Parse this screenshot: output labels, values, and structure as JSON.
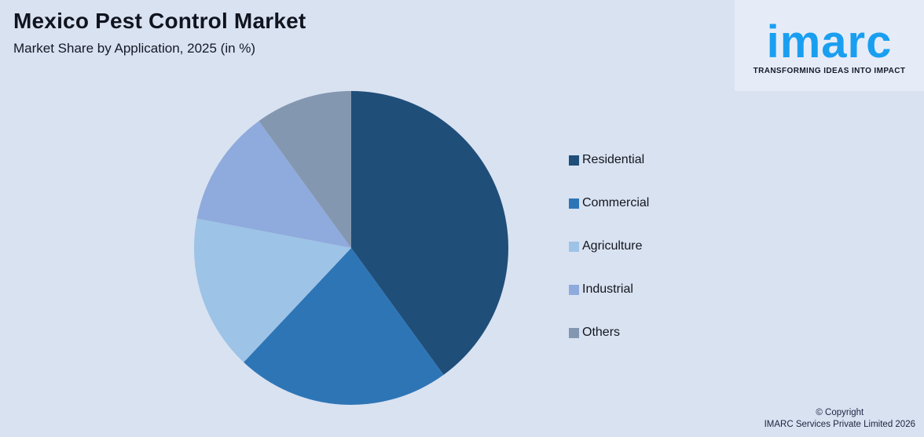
{
  "header": {
    "title": "Mexico Pest Control Market",
    "subtitle": "Market Share by Application, 2025 (in %)"
  },
  "logo": {
    "name": "imarc",
    "tagline": "TRANSFORMING IDEAS INTO IMPACT",
    "brand_color": "#1A9FF0"
  },
  "chart_data": {
    "type": "pie",
    "title": "Mexico Pest Control Market",
    "subtitle": "Market Share by Application, 2025 (in %)",
    "unit": "%",
    "categories": [
      "Residential",
      "Commercial",
      "Agriculture",
      "Industrial",
      "Others"
    ],
    "values": [
      40,
      22,
      16,
      12,
      10
    ],
    "colors": [
      "#1F4E79",
      "#2E75B6",
      "#9DC3E6",
      "#8FAADC",
      "#8497B0"
    ],
    "legend_position": "right",
    "start_angle_deg": 0,
    "direction": "clockwise",
    "data_labels": false
  },
  "footer": {
    "copyright_line1": "© Copyright",
    "copyright_line2": "IMARC Services Private Limited 2026"
  },
  "page": {
    "background": "#D9E2F1"
  }
}
